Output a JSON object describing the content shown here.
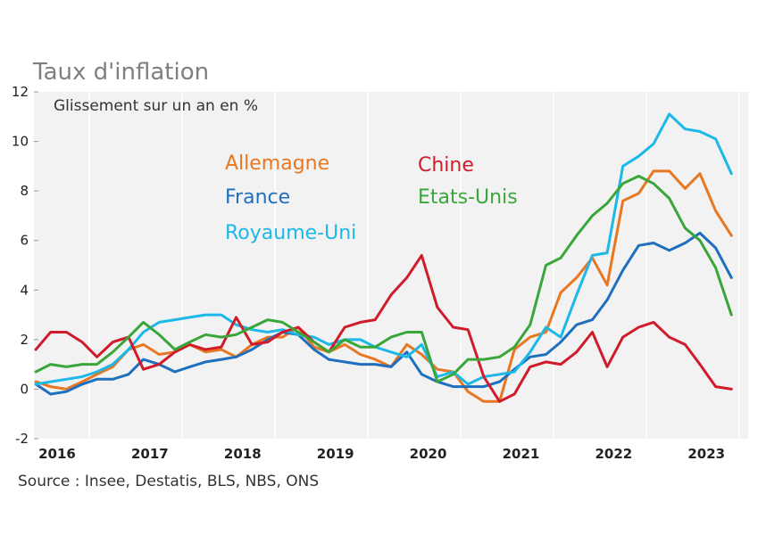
{
  "title": "Taux d'inflation",
  "source": "Source :  Insee, Destatis, BLS, NBS, ONS",
  "colors": {
    "plot_bg": "#f2f2f2",
    "grid": "#ffffff",
    "title": "#7f7f7f"
  },
  "chart_data": {
    "type": "line",
    "title": "Taux d'inflation",
    "subtitle": "Glissement sur un an en %",
    "xlabel": "",
    "ylabel": "",
    "ylim": [
      -2,
      12
    ],
    "xlim": [
      2015.9,
      2023.6
    ],
    "yticks": [
      -2,
      0,
      2,
      4,
      6,
      8,
      10,
      12
    ],
    "xticks": [
      "2016",
      "2017",
      "2018",
      "2019",
      "2020",
      "2021",
      "2022",
      "2023"
    ],
    "grid": true,
    "legend_placement": "top-center",
    "series": [
      {
        "name": "Allemagne",
        "color": "#e87722",
        "x": [
          2015.92,
          2016.08,
          2016.25,
          2016.42,
          2016.58,
          2016.75,
          2016.92,
          2017.08,
          2017.25,
          2017.42,
          2017.58,
          2017.75,
          2017.92,
          2018.08,
          2018.25,
          2018.42,
          2018.58,
          2018.75,
          2018.92,
          2019.08,
          2019.25,
          2019.42,
          2019.58,
          2019.75,
          2019.92,
          2020.08,
          2020.25,
          2020.42,
          2020.58,
          2020.75,
          2020.92,
          2021.08,
          2021.25,
          2021.42,
          2021.58,
          2021.75,
          2021.92,
          2022.08,
          2022.25,
          2022.42,
          2022.58,
          2022.75,
          2022.92,
          2023.08,
          2023.25,
          2023.42
        ],
        "values": [
          0.3,
          0.1,
          0.0,
          0.3,
          0.6,
          0.9,
          1.6,
          1.8,
          1.4,
          1.5,
          1.8,
          1.5,
          1.6,
          1.3,
          1.8,
          2.1,
          2.1,
          2.5,
          1.7,
          1.5,
          1.8,
          1.4,
          1.2,
          0.9,
          1.8,
          1.4,
          0.8,
          0.7,
          -0.1,
          -0.5,
          -0.5,
          1.6,
          2.1,
          2.3,
          3.9,
          4.5,
          5.3,
          4.2,
          7.6,
          7.9,
          8.8,
          8.8,
          8.1,
          8.7,
          7.2,
          6.2
        ]
      },
      {
        "name": "France",
        "color": "#1f6fbf",
        "x": [
          2015.92,
          2016.08,
          2016.25,
          2016.42,
          2016.58,
          2016.75,
          2016.92,
          2017.08,
          2017.25,
          2017.42,
          2017.58,
          2017.75,
          2017.92,
          2018.08,
          2018.25,
          2018.42,
          2018.58,
          2018.75,
          2018.92,
          2019.08,
          2019.25,
          2019.42,
          2019.58,
          2019.75,
          2019.92,
          2020.08,
          2020.25,
          2020.42,
          2020.58,
          2020.75,
          2020.92,
          2021.08,
          2021.25,
          2021.42,
          2021.58,
          2021.75,
          2021.92,
          2022.08,
          2022.25,
          2022.42,
          2022.58,
          2022.75,
          2022.92,
          2023.08,
          2023.25,
          2023.42
        ],
        "values": [
          0.2,
          -0.2,
          -0.1,
          0.2,
          0.4,
          0.4,
          0.6,
          1.2,
          1.0,
          0.7,
          0.9,
          1.1,
          1.2,
          1.3,
          1.6,
          2.0,
          2.3,
          2.2,
          1.6,
          1.2,
          1.1,
          1.0,
          1.0,
          0.9,
          1.5,
          0.6,
          0.3,
          0.1,
          0.1,
          0.1,
          0.3,
          0.8,
          1.3,
          1.4,
          1.9,
          2.6,
          2.8,
          3.6,
          4.8,
          5.8,
          5.9,
          5.6,
          5.9,
          6.3,
          5.7,
          4.5
        ]
      },
      {
        "name": "Royaume-Uni",
        "color": "#1bb8e8",
        "x": [
          2015.92,
          2016.08,
          2016.25,
          2016.42,
          2016.58,
          2016.75,
          2016.92,
          2017.08,
          2017.25,
          2017.42,
          2017.58,
          2017.75,
          2017.92,
          2018.08,
          2018.25,
          2018.42,
          2018.58,
          2018.75,
          2018.92,
          2019.08,
          2019.25,
          2019.42,
          2019.58,
          2019.75,
          2019.92,
          2020.08,
          2020.25,
          2020.42,
          2020.58,
          2020.75,
          2020.92,
          2021.08,
          2021.25,
          2021.42,
          2021.58,
          2021.75,
          2021.92,
          2022.08,
          2022.25,
          2022.42,
          2022.58,
          2022.75,
          2022.92,
          2023.08,
          2023.25,
          2023.42
        ],
        "values": [
          0.2,
          0.3,
          0.4,
          0.5,
          0.7,
          1.0,
          1.6,
          2.3,
          2.7,
          2.8,
          2.9,
          3.0,
          3.0,
          2.6,
          2.4,
          2.3,
          2.4,
          2.2,
          2.1,
          1.8,
          2.0,
          2.0,
          1.7,
          1.5,
          1.3,
          1.8,
          0.5,
          0.7,
          0.2,
          0.5,
          0.6,
          0.7,
          1.5,
          2.5,
          2.1,
          3.8,
          5.4,
          5.5,
          9.0,
          9.4,
          9.9,
          11.1,
          10.5,
          10.4,
          10.1,
          8.7
        ]
      },
      {
        "name": "Chine",
        "color": "#d01c2a",
        "x": [
          2015.92,
          2016.08,
          2016.25,
          2016.42,
          2016.58,
          2016.75,
          2016.92,
          2017.08,
          2017.25,
          2017.42,
          2017.58,
          2017.75,
          2017.92,
          2018.08,
          2018.25,
          2018.42,
          2018.58,
          2018.75,
          2018.92,
          2019.08,
          2019.25,
          2019.42,
          2019.58,
          2019.75,
          2019.92,
          2020.08,
          2020.25,
          2020.42,
          2020.58,
          2020.75,
          2020.92,
          2021.08,
          2021.25,
          2021.42,
          2021.58,
          2021.75,
          2021.92,
          2022.08,
          2022.25,
          2022.42,
          2022.58,
          2022.75,
          2022.92,
          2023.08,
          2023.25,
          2023.42
        ],
        "values": [
          1.6,
          2.3,
          2.3,
          1.9,
          1.3,
          1.9,
          2.1,
          0.8,
          1.0,
          1.5,
          1.8,
          1.6,
          1.7,
          2.9,
          1.8,
          1.9,
          2.3,
          2.5,
          1.9,
          1.5,
          2.5,
          2.7,
          2.8,
          3.8,
          4.5,
          5.4,
          3.3,
          2.5,
          2.4,
          0.5,
          -0.5,
          -0.2,
          0.9,
          1.1,
          1.0,
          1.5,
          2.3,
          0.9,
          2.1,
          2.5,
          2.7,
          2.1,
          1.8,
          1.0,
          0.1,
          0.0
        ]
      },
      {
        "name": "Etats-Unis",
        "color": "#3aa63a",
        "x": [
          2015.92,
          2016.08,
          2016.25,
          2016.42,
          2016.58,
          2016.75,
          2016.92,
          2017.08,
          2017.25,
          2017.42,
          2017.58,
          2017.75,
          2017.92,
          2018.08,
          2018.25,
          2018.42,
          2018.58,
          2018.75,
          2018.92,
          2019.08,
          2019.25,
          2019.42,
          2019.58,
          2019.75,
          2019.92,
          2020.08,
          2020.25,
          2020.42,
          2020.58,
          2020.75,
          2020.92,
          2021.08,
          2021.25,
          2021.42,
          2021.58,
          2021.75,
          2021.92,
          2022.08,
          2022.25,
          2022.42,
          2022.58,
          2022.75,
          2022.92,
          2023.08,
          2023.25,
          2023.42
        ],
        "values": [
          0.7,
          1.0,
          0.9,
          1.0,
          1.0,
          1.5,
          2.1,
          2.7,
          2.2,
          1.6,
          1.9,
          2.2,
          2.1,
          2.2,
          2.5,
          2.8,
          2.7,
          2.3,
          1.9,
          1.5,
          2.0,
          1.7,
          1.7,
          2.1,
          2.3,
          2.3,
          0.3,
          0.6,
          1.2,
          1.2,
          1.3,
          1.7,
          2.6,
          5.0,
          5.3,
          6.2,
          7.0,
          7.5,
          8.3,
          8.6,
          8.3,
          7.7,
          6.5,
          6.0,
          4.9,
          3.0
        ]
      }
    ]
  }
}
